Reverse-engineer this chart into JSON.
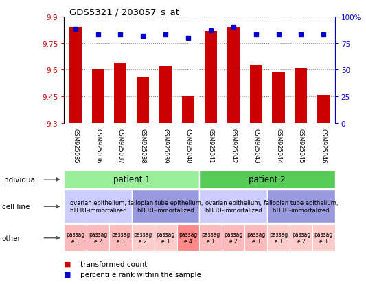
{
  "title": "GDS5321 / 203057_s_at",
  "samples": [
    "GSM925035",
    "GSM925036",
    "GSM925037",
    "GSM925038",
    "GSM925039",
    "GSM925040",
    "GSM925041",
    "GSM925042",
    "GSM925043",
    "GSM925044",
    "GSM925045",
    "GSM925046"
  ],
  "bar_values": [
    9.84,
    9.6,
    9.64,
    9.56,
    9.62,
    9.45,
    9.82,
    9.84,
    9.63,
    9.59,
    9.61,
    9.46
  ],
  "dot_values": [
    88,
    83,
    83,
    82,
    83,
    80,
    87,
    90,
    83,
    83,
    83,
    83
  ],
  "ymin": 9.3,
  "ymax": 9.9,
  "y2min": 0,
  "y2max": 100,
  "yticks": [
    9.3,
    9.45,
    9.6,
    9.75,
    9.9
  ],
  "y2ticks": [
    0,
    25,
    50,
    75,
    100
  ],
  "bar_color": "#cc0000",
  "dot_color": "#0000cc",
  "individual_row": {
    "color1": "#99ee99",
    "color2": "#55cc55",
    "label1": "patient 1",
    "label2": "patient 2"
  },
  "cellline_row": {
    "groups": [
      {
        "start": 0,
        "end": 3,
        "label": "ovarian epithelium,\nhTERT-immortalized",
        "color": "#ccccff"
      },
      {
        "start": 3,
        "end": 6,
        "label": "fallopian tube epithelium,\nhTERT-immortalized",
        "color": "#9999dd"
      },
      {
        "start": 6,
        "end": 9,
        "label": "ovarian epithelium,\nhTERT-immortalized",
        "color": "#ccccff"
      },
      {
        "start": 9,
        "end": 12,
        "label": "fallopian tube epithelium,\nhTERT-immortalized",
        "color": "#9999dd"
      }
    ]
  },
  "other_row": {
    "labels": [
      "passag\ne 1",
      "passag\ne 2",
      "passag\ne 3",
      "passag\ne 2",
      "passag\ne 3",
      "passag\ne 4",
      "passag\ne 1",
      "passag\ne 2",
      "passag\ne 3",
      "passag\ne 1",
      "passag\ne 2",
      "passag\ne 3"
    ],
    "colors": [
      "#ffbbbb",
      "#ffbbbb",
      "#ffbbbb",
      "#ffcccc",
      "#ffcccc",
      "#ff8888",
      "#ffbbbb",
      "#ffbbbb",
      "#ffbbbb",
      "#ffcccc",
      "#ffcccc",
      "#ffcccc"
    ]
  },
  "legend_bar_label": "transformed count",
  "legend_dot_label": "percentile rank within the sample",
  "bar_color_legend": "#cc0000",
  "dot_color_legend": "#0000cc",
  "bg_color": "#ffffff",
  "grid_color": "#888888",
  "axis_color_left": "#cc0000",
  "axis_color_right": "#0000cc",
  "sample_bg_color": "#cccccc"
}
